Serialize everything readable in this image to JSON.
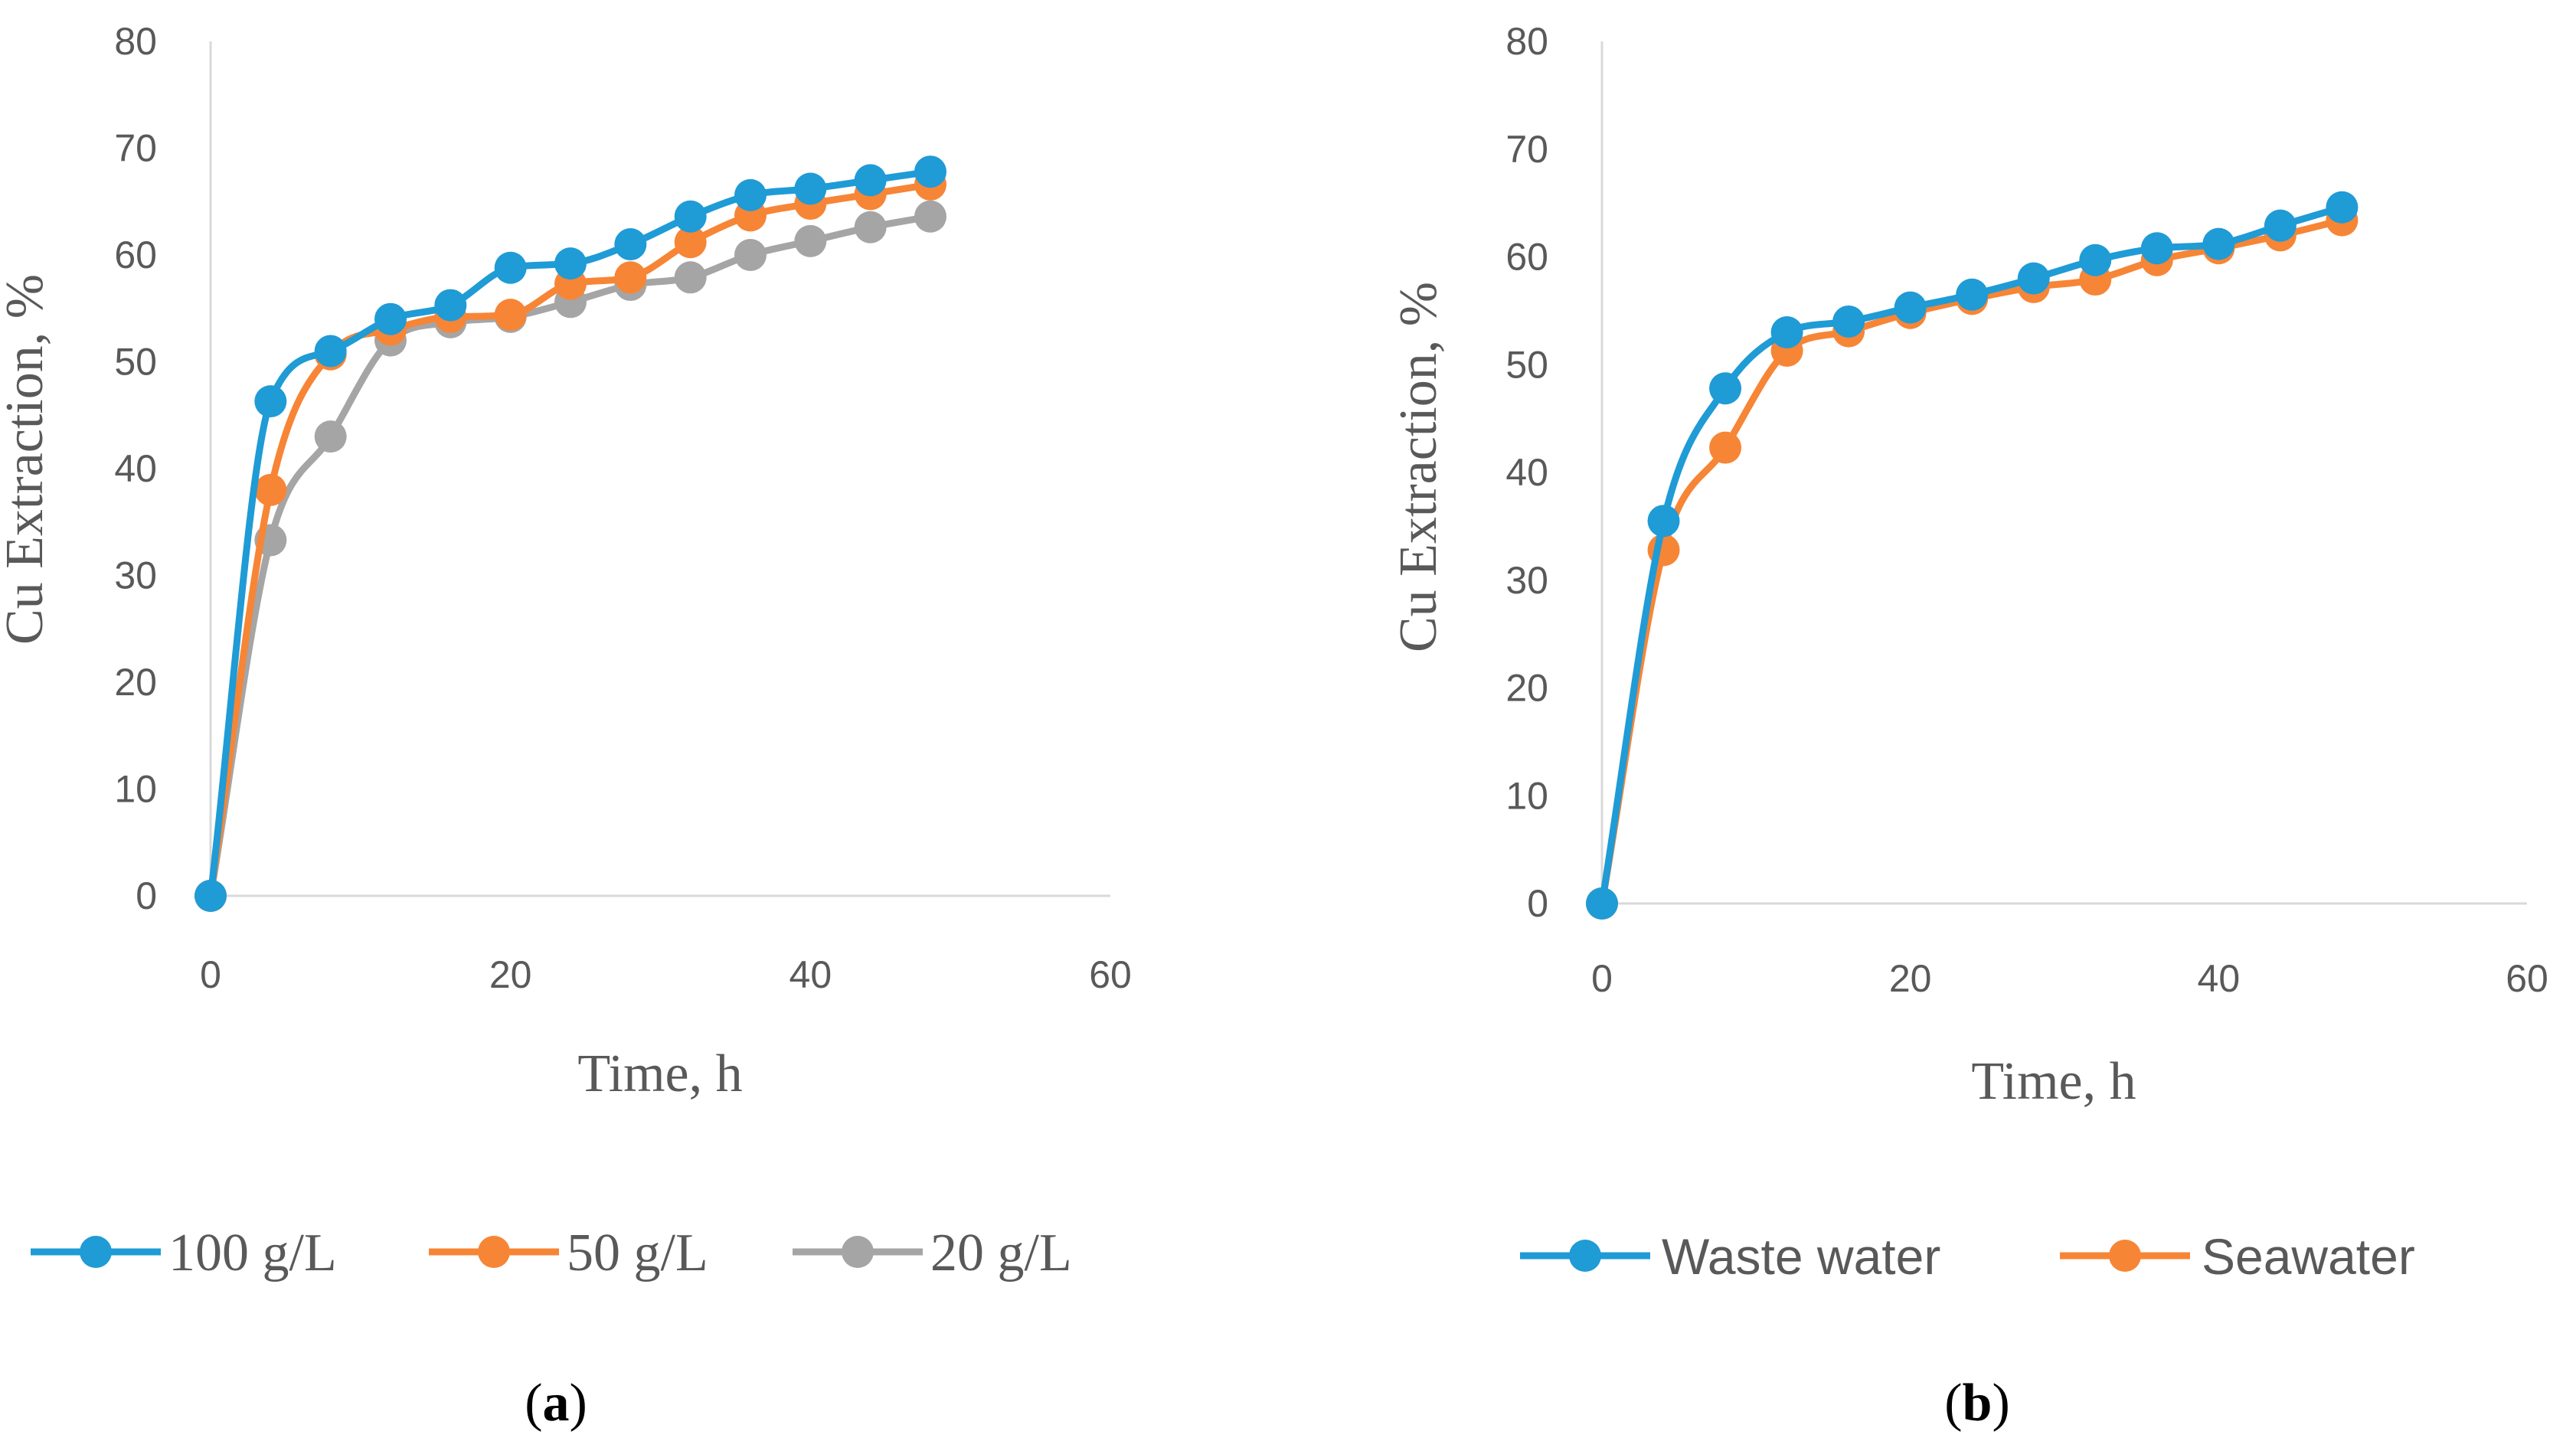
{
  "chart_data": [
    {
      "id": "a",
      "type": "line",
      "caption": {
        "open": "(",
        "letter": "a",
        "close": ")"
      },
      "xlabel": "Time, h",
      "ylabel": "Cu Extraction, %",
      "xlim": [
        0,
        60
      ],
      "ylim": [
        0,
        80
      ],
      "xticks": [
        "0",
        "20",
        "40",
        "60"
      ],
      "yticks": [
        "0",
        "10",
        "20",
        "30",
        "40",
        "50",
        "60",
        "70",
        "80"
      ],
      "grid": false,
      "legend_position": "bottom",
      "x": [
        0,
        4,
        8,
        12,
        16,
        20,
        24,
        28,
        32,
        36,
        40,
        44,
        48
      ],
      "series": [
        {
          "name": "100 g/L",
          "color": "#1f9bd6",
          "values": [
            0,
            46.3,
            51,
            54,
            55.3,
            58.8,
            59.2,
            61,
            63.6,
            65.6,
            66.2,
            67,
            67.8
          ]
        },
        {
          "name": "50 g/L",
          "color": "#f78536",
          "values": [
            0,
            38,
            50.7,
            53,
            54.2,
            54.4,
            57.3,
            57.9,
            61.2,
            63.7,
            64.8,
            65.7,
            66.6
          ]
        },
        {
          "name": "20 g/L",
          "color": "#a5a5a5",
          "values": [
            0,
            33.3,
            43,
            52,
            53.7,
            54.2,
            55.6,
            57.2,
            57.9,
            60,
            61.3,
            62.6,
            63.6
          ]
        }
      ]
    },
    {
      "id": "b",
      "type": "line",
      "caption": {
        "open": "(",
        "letter": "b",
        "close": ")"
      },
      "xlabel": "Time, h",
      "ylabel": "Cu Extraction, %",
      "xlim": [
        0,
        60
      ],
      "ylim": [
        0,
        80
      ],
      "xticks": [
        "0",
        "20",
        "40",
        "60"
      ],
      "yticks": [
        "0",
        "10",
        "20",
        "30",
        "40",
        "50",
        "60",
        "70",
        "80"
      ],
      "grid": false,
      "legend_position": "bottom",
      "x": [
        0,
        4,
        8,
        12,
        16,
        20,
        24,
        28,
        32,
        36,
        40,
        44,
        48
      ],
      "series": [
        {
          "name": "Waste water",
          "color": "#1f9bd6",
          "values": [
            0,
            35.5,
            47.8,
            53,
            54,
            55.3,
            56.5,
            58,
            59.7,
            60.8,
            61.2,
            62.9,
            64.6
          ]
        },
        {
          "name": "Seawater",
          "color": "#f78536",
          "values": [
            0,
            32.8,
            42.3,
            51.3,
            53.1,
            54.8,
            56.1,
            57.2,
            57.9,
            59.7,
            60.8,
            62,
            63.4
          ]
        }
      ]
    }
  ]
}
